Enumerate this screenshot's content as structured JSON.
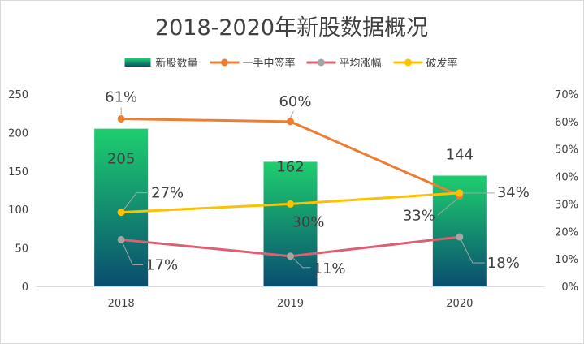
{
  "chart_data": {
    "type": "bar",
    "title": "2018-2020年新股数据概况",
    "categories": [
      "2018",
      "2019",
      "2020"
    ],
    "left_axis": {
      "min": 0,
      "max": 250,
      "step": 50,
      "ticks": [
        "0",
        "50",
        "100",
        "150",
        "200",
        "250"
      ]
    },
    "right_axis": {
      "min": 0,
      "max": 70,
      "step": 10,
      "ticks": [
        "0%",
        "10%",
        "20%",
        "30%",
        "40%",
        "50%",
        "60%",
        "70%"
      ]
    },
    "grid": false,
    "legend_position": "top",
    "series": [
      {
        "name": "新股数量",
        "kind": "bar",
        "axis": "left",
        "values": [
          205,
          162,
          144
        ],
        "labels": [
          "205",
          "162",
          "144"
        ],
        "color_top": "#1ece6f",
        "color_bottom": "#0a4d6f"
      },
      {
        "name": "一手中签率",
        "kind": "line",
        "axis": "right",
        "values": [
          61,
          60,
          33
        ],
        "labels": [
          "61%",
          "60%",
          "33%"
        ],
        "color": "#ed7d31"
      },
      {
        "name": "平均涨幅",
        "kind": "line",
        "axis": "right",
        "values": [
          17,
          11,
          18
        ],
        "labels": [
          "17%",
          "11%",
          "18%"
        ],
        "color": "#dd5f72",
        "marker_color": "#a5a5a5"
      },
      {
        "name": "破发率",
        "kind": "line",
        "axis": "right",
        "values": [
          27,
          30,
          34
        ],
        "labels": [
          "27%",
          "30%",
          "34%"
        ],
        "color": "#ffc000"
      }
    ]
  }
}
